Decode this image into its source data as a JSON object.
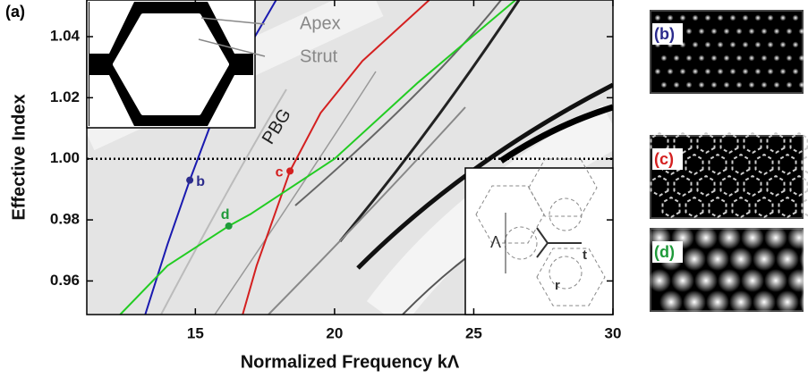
{
  "chart_data": {
    "type": "line",
    "panel_label": "(a)",
    "x_label": "Normalized Frequency kΛ",
    "y_label": "Effective Index",
    "xlim": [
      11.1,
      30
    ],
    "ylim": [
      0.949,
      1.052
    ],
    "xticks": [
      15,
      20,
      25,
      30
    ],
    "yticks": [
      0.96,
      0.98,
      {
        "value": 1.0,
        "label": "1.00"
      },
      1.02,
      1.04
    ],
    "hline": 1.0,
    "series": [
      {
        "color": "#1a1ab0",
        "x": [
          13.2,
          14.0,
          14.8,
          15.5,
          16.5,
          17.9
        ],
        "values": [
          0.949,
          0.972,
          0.993,
          1.01,
          1.03,
          1.052
        ]
      },
      {
        "color": "#d42020",
        "x": [
          16.7,
          17.2,
          18.4,
          19.5,
          21.0,
          23.4
        ],
        "values": [
          0.949,
          0.965,
          0.996,
          1.015,
          1.032,
          1.052
        ]
      },
      {
        "color": "#22cc22",
        "x": [
          12.3,
          14.0,
          16.2,
          17.0,
          20.0,
          23.0,
          26.5
        ],
        "values": [
          0.949,
          0.965,
          0.978,
          0.982,
          1.0,
          1.025,
          1.052
        ]
      }
    ],
    "points": [
      {
        "label": "b",
        "x": 14.8,
        "y": 0.993,
        "color": "#2b2b8c"
      },
      {
        "label": "c",
        "x": 18.4,
        "y": 0.996,
        "color": "#d42020"
      },
      {
        "label": "d",
        "x": 16.2,
        "y": 0.978,
        "color": "#1f9a3a"
      }
    ],
    "annotation": "PBG",
    "inset_labels": {
      "apex": "Apex",
      "strut": "Strut",
      "pitch": "Λ",
      "thickness": "t",
      "radius": "r"
    },
    "mode_panels": [
      {
        "label": "(b)",
        "color": "#2b2b8c"
      },
      {
        "label": "(c)",
        "color": "#d42020"
      },
      {
        "label": "(d)",
        "color": "#1f9a3a"
      }
    ]
  }
}
